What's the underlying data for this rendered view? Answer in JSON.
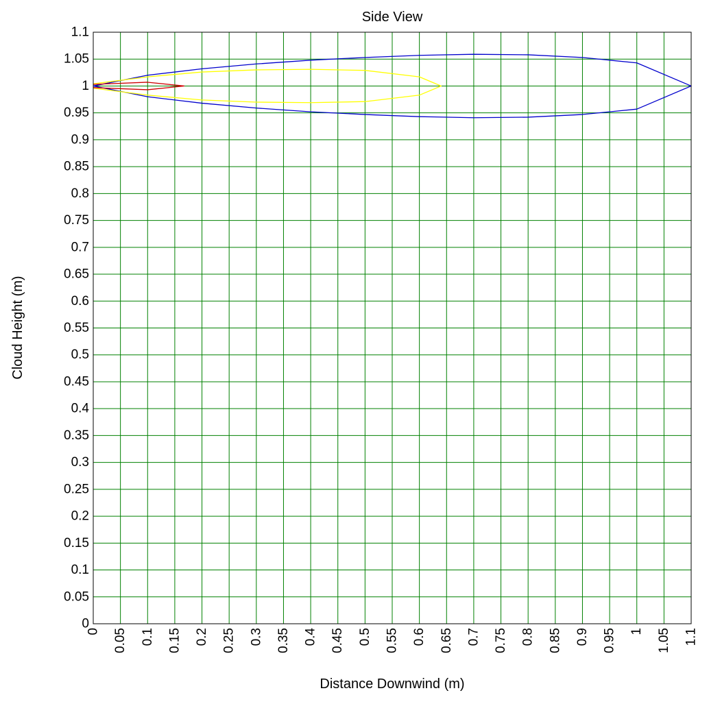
{
  "chart_data": {
    "type": "line",
    "title": "Side View",
    "xlabel": "Distance Downwind (m)",
    "ylabel": "Cloud Height (m)",
    "xlim": [
      0,
      1.1
    ],
    "ylim": [
      0,
      1.1
    ],
    "xticks": [
      "0",
      "0.05",
      "0.1",
      "0.15",
      "0.2",
      "0.25",
      "0.3",
      "0.35",
      "0.4",
      "0.45",
      "0.5",
      "0.55",
      "0.6",
      "0.65",
      "0.7",
      "0.75",
      "0.8",
      "0.85",
      "0.9",
      "0.95",
      "1",
      "1.05",
      "1.1"
    ],
    "yticks": [
      "0",
      "0.05",
      "0.1",
      "0.15",
      "0.2",
      "0.25",
      "0.3",
      "0.35",
      "0.4",
      "0.45",
      "0.5",
      "0.55",
      "0.6",
      "0.65",
      "0.7",
      "0.75",
      "0.8",
      "0.85",
      "0.9",
      "0.95",
      "1",
      "1.05",
      "1.1"
    ],
    "grid": true,
    "colors": {
      "grid": "#008000",
      "axis": "#000000",
      "background": "#ffffff"
    },
    "series": [
      {
        "color": "#0000cc",
        "x": [
          0,
          0.1,
          0.2,
          0.3,
          0.4,
          0.5,
          0.6,
          0.7,
          0.8,
          0.9,
          1.0,
          1.1,
          1.0,
          0.9,
          0.8,
          0.7,
          0.6,
          0.5,
          0.4,
          0.3,
          0.2,
          0.1,
          0
        ],
        "y": [
          1.0,
          1.02,
          1.032,
          1.041,
          1.048,
          1.053,
          1.057,
          1.059,
          1.058,
          1.053,
          1.043,
          1.0,
          0.957,
          0.947,
          0.942,
          0.941,
          0.943,
          0.947,
          0.952,
          0.959,
          0.968,
          0.98,
          1.0
        ]
      },
      {
        "color": "#ffff00",
        "x": [
          0,
          0.1,
          0.2,
          0.3,
          0.4,
          0.5,
          0.6,
          0.64,
          0.6,
          0.5,
          0.4,
          0.3,
          0.2,
          0.1,
          0
        ],
        "y": [
          1.004,
          1.017,
          1.026,
          1.03,
          1.031,
          1.029,
          1.017,
          1.0,
          0.983,
          0.971,
          0.969,
          0.97,
          0.974,
          0.983,
          0.996
        ]
      },
      {
        "color": "#cc0000",
        "x": [
          0,
          0.1,
          0.167,
          0.1,
          0
        ],
        "y": [
          1.003,
          1.007,
          1.0,
          0.993,
          0.997
        ]
      }
    ]
  }
}
